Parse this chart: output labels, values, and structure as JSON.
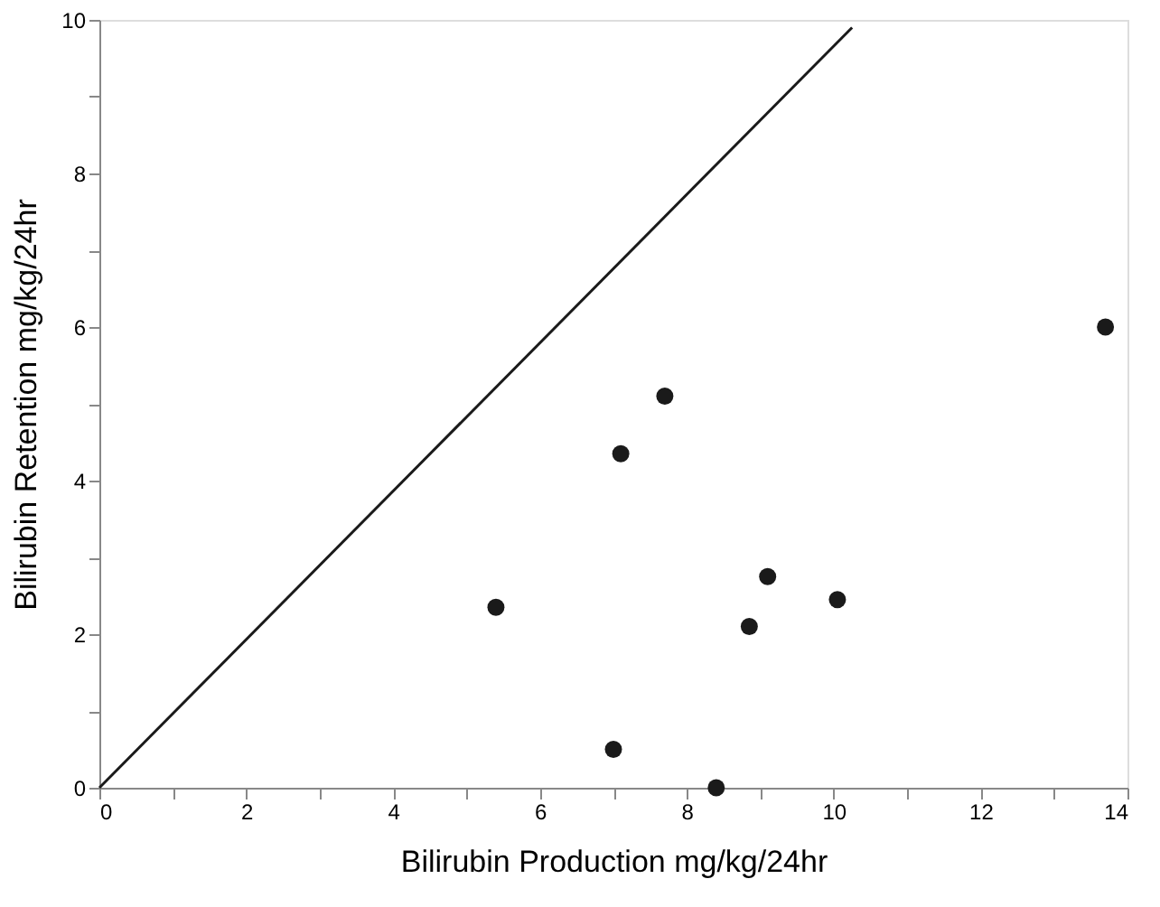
{
  "chart_data": {
    "type": "scatter",
    "xlabel": "Bilirubin Production  mg/kg/24hr",
    "ylabel": "Bilirubin Retention  mg/kg/24hr",
    "xlim": [
      0,
      14
    ],
    "ylim": [
      0,
      10
    ],
    "xticks": [
      0,
      {
        "value": 1,
        "label": null
      },
      2,
      {
        "value": 3,
        "label": null
      },
      4,
      {
        "value": 5,
        "label": null
      },
      6,
      {
        "value": 7,
        "label": null
      },
      8,
      {
        "value": 9,
        "label": null
      },
      10,
      {
        "value": 11,
        "label": null
      },
      12,
      {
        "value": 13,
        "label": null
      },
      14
    ],
    "yticks": [
      0,
      {
        "value": 1,
        "label": null
      },
      2,
      {
        "value": 3,
        "label": null
      },
      4,
      {
        "value": 5,
        "label": null
      },
      6,
      {
        "value": 7,
        "label": null
      },
      8,
      {
        "value": 9,
        "label": null
      },
      10
    ],
    "grid": false,
    "marker": "circle",
    "series": [
      {
        "color": "#1a1a1a",
        "x": [
          5.4,
          7.0,
          7.1,
          7.7,
          8.4,
          8.85,
          9.1,
          10.05,
          13.7
        ],
        "values": [
          2.35,
          0.5,
          4.35,
          5.1,
          0.0,
          2.1,
          2.75,
          2.45,
          6.0
        ]
      },
      {
        "type": "line",
        "color": "#1a1a1a",
        "line_style": "solid",
        "marker": "none",
        "x": [
          0,
          10.25
        ],
        "values": [
          0,
          9.9
        ]
      }
    ]
  }
}
